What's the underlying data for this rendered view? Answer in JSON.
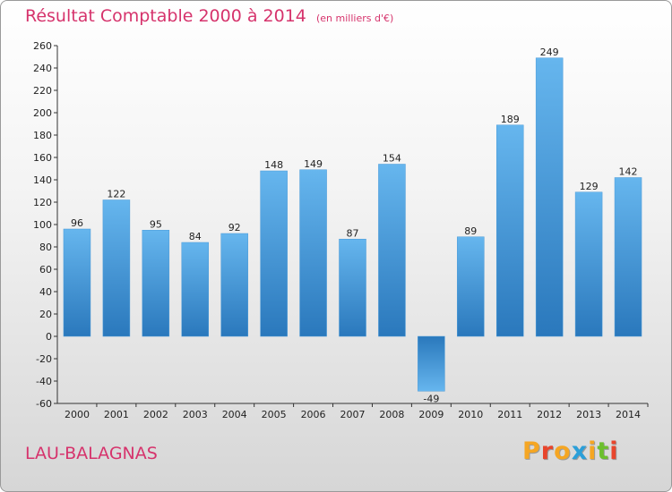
{
  "title": "Résultat Comptable 2000 à 2014",
  "unit": "(en milliers d'€)",
  "commune": "LAU-BALAGNAS",
  "logo": {
    "letters": [
      "P",
      "r",
      "o",
      "x",
      "i",
      "t",
      "i"
    ]
  },
  "colors": {
    "title": "#d6336c",
    "bar_light": "#63b3ec",
    "bar_dark": "#2f7dc0",
    "logo": [
      "#f5a623",
      "#e8452c",
      "#f5a623",
      "#2b9fd9",
      "#f5a623",
      "#6cbf2e",
      "#e8452c"
    ]
  },
  "chart_data": {
    "type": "bar",
    "title": "Résultat Comptable 2000 à 2014",
    "ylabel": "(en milliers d'€)",
    "xlabel": "",
    "categories": [
      "2000",
      "2001",
      "2002",
      "2003",
      "2004",
      "2005",
      "2006",
      "2007",
      "2008",
      "2009",
      "2010",
      "2011",
      "2012",
      "2013",
      "2014"
    ],
    "values": [
      96,
      122,
      95,
      84,
      92,
      148,
      149,
      87,
      154,
      -49,
      89,
      189,
      249,
      129,
      142
    ],
    "ylim": [
      -60,
      260
    ],
    "yticks": [
      -60,
      -40,
      -20,
      0,
      20,
      40,
      60,
      80,
      100,
      120,
      140,
      160,
      180,
      200,
      220,
      240,
      260
    ],
    "grid": false
  }
}
